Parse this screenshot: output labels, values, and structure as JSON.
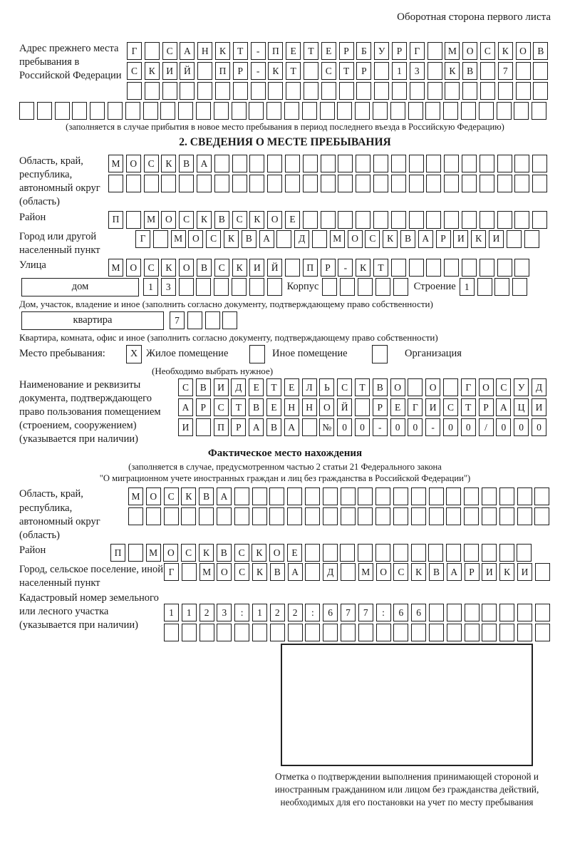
{
  "colors": {
    "ink": "#1a1a1a",
    "background": "#ffffff"
  },
  "header": {
    "note": "Оборотная сторона первого листа"
  },
  "section1": {
    "label": "Адрес прежнего места пребывания в Российской Федерации",
    "rows": [
      [
        "Г",
        "",
        "С",
        "А",
        "Н",
        "К",
        "Т",
        "-",
        "П",
        "Е",
        "Т",
        "Е",
        "Р",
        "Б",
        "У",
        "Р",
        "Г",
        "",
        "М",
        "О",
        "С",
        "К",
        "О",
        "В"
      ],
      [
        "С",
        "К",
        "И",
        "Й",
        "",
        "П",
        "Р",
        "-",
        "К",
        "Т",
        "",
        "С",
        "Т",
        "Р",
        "",
        "1",
        "3",
        "",
        "К",
        "В",
        "",
        "7",
        "",
        ""
      ],
      [
        "",
        "",
        "",
        "",
        "",
        "",
        "",
        "",
        "",
        "",
        "",
        "",
        "",
        "",
        "",
        "",
        "",
        "",
        "",
        "",
        "",
        "",
        "",
        ""
      ]
    ],
    "full_row": [
      "",
      "",
      "",
      "",
      "",
      "",
      "",
      "",
      "",
      "",
      "",
      "",
      "",
      "",
      "",
      "",
      "",
      "",
      "",
      "",
      "",
      "",
      "",
      "",
      "",
      "",
      "",
      "",
      "",
      ""
    ],
    "note": "(заполняется в случае прибытия в новое место пребывания в период последнего въезда в Российскую Федерацию)"
  },
  "section2": {
    "title": "2. СВЕДЕНИЯ О МЕСТЕ ПРЕБЫВАНИЯ",
    "oblast": {
      "label": "Область, край, республика, автономный округ (область)",
      "rows": [
        [
          "М",
          "О",
          "С",
          "К",
          "В",
          "А",
          "",
          "",
          "",
          "",
          "",
          "",
          "",
          "",
          "",
          "",
          "",
          "",
          "",
          "",
          "",
          "",
          "",
          "",
          ""
        ],
        [
          "",
          "",
          "",
          "",
          "",
          "",
          "",
          "",
          "",
          "",
          "",
          "",
          "",
          "",
          "",
          "",
          "",
          "",
          "",
          "",
          "",
          "",
          "",
          "",
          ""
        ]
      ]
    },
    "rayon": {
      "label": "Район",
      "row": [
        "П",
        "",
        "М",
        "О",
        "С",
        "К",
        "В",
        "С",
        "К",
        "О",
        "Е",
        "",
        "",
        "",
        "",
        "",
        "",
        "",
        "",
        "",
        "",
        "",
        "",
        "",
        ""
      ]
    },
    "gorod": {
      "label": "Город или другой населенный пункт",
      "row": [
        "Г",
        "",
        "М",
        "О",
        "С",
        "К",
        "В",
        "А",
        "",
        "Д",
        "",
        "М",
        "О",
        "С",
        "К",
        "В",
        "А",
        "Р",
        "И",
        "К",
        "И",
        "",
        ""
      ]
    },
    "ulitsa": {
      "label": "Улица",
      "row": [
        "М",
        "О",
        "С",
        "К",
        "О",
        "В",
        "С",
        "К",
        "И",
        "Й",
        "",
        "П",
        "Р",
        "-",
        "К",
        "Т",
        "",
        "",
        "",
        "",
        "",
        "",
        "",
        ""
      ]
    },
    "dom": {
      "box_label": "дом",
      "cells": [
        "1",
        "3",
        "",
        "",
        "",
        "",
        "",
        ""
      ],
      "korpus_label": "Корпус",
      "korpus_cells": [
        "",
        "",
        "",
        "",
        ""
      ],
      "stroenie_label": "Строение",
      "stroenie_cells": [
        "1",
        "",
        "",
        ""
      ]
    },
    "dom_note": "Дом, участок, владение и иное (заполнить согласно документу, подтверждающему право собственности)",
    "kvartira": {
      "box_label": "квартира",
      "cells": [
        "7",
        "",
        "",
        ""
      ]
    },
    "kvartira_note": "Квартира, комната, офис и иное (заполнить согласно документу, подтверждающему право собственности)",
    "stay": {
      "label": "Место пребывания:",
      "options": [
        {
          "mark": "X",
          "label": "Жилое помещение"
        },
        {
          "mark": "",
          "label": "Иное помещение"
        },
        {
          "mark": "",
          "label": "Организация"
        }
      ],
      "note": "(Необходимо выбрать нужное)"
    },
    "doc": {
      "label": "Наименование и реквизиты документа, подтверждающего право пользования помещением (строением, сооружением) (указывается при наличии)",
      "rows": [
        [
          "С",
          "В",
          "И",
          "Д",
          "Е",
          "Т",
          "Е",
          "Л",
          "Ь",
          "С",
          "Т",
          "В",
          "О",
          "",
          "О",
          "",
          "Г",
          "О",
          "С",
          "У",
          "Д"
        ],
        [
          "А",
          "Р",
          "С",
          "Т",
          "В",
          "Е",
          "Н",
          "Н",
          "О",
          "Й",
          "",
          "Р",
          "Е",
          "Г",
          "И",
          "С",
          "Т",
          "Р",
          "А",
          "Ц",
          "И"
        ],
        [
          "И",
          "",
          "П",
          "Р",
          "А",
          "В",
          "А",
          "",
          "№",
          "0",
          "0",
          "-",
          "0",
          "0",
          "-",
          "0",
          "0",
          "/",
          "0",
          "0",
          "0"
        ]
      ]
    }
  },
  "section3": {
    "title": "Фактическое место нахождения",
    "note_line1": "(заполняется в случае, предусмотренном частью 2 статьи 21 Федерального закона",
    "note_line2": "\"О миграционном учете иностранных граждан и лиц без гражданства в Российской Федерации\")",
    "oblast": {
      "label": "Область, край, республика, автономный округ (область)",
      "rows": [
        [
          "М",
          "О",
          "С",
          "К",
          "В",
          "А",
          "",
          "",
          "",
          "",
          "",
          "",
          "",
          "",
          "",
          "",
          "",
          "",
          "",
          "",
          "",
          "",
          "",
          ""
        ],
        [
          "",
          "",
          "",
          "",
          "",
          "",
          "",
          "",
          "",
          "",
          "",
          "",
          "",
          "",
          "",
          "",
          "",
          "",
          "",
          "",
          "",
          "",
          "",
          ""
        ]
      ]
    },
    "rayon": {
      "label": "Район",
      "row": [
        "П",
        "",
        "М",
        "О",
        "С",
        "К",
        "В",
        "С",
        "К",
        "О",
        "Е",
        "",
        "",
        "",
        "",
        "",
        "",
        "",
        "",
        "",
        "",
        "",
        "",
        ""
      ]
    },
    "gorod": {
      "label": "Город, сельское поселение, иной населенный пункт",
      "row": [
        "Г",
        "",
        "М",
        "О",
        "С",
        "К",
        "В",
        "А",
        "",
        "Д",
        "",
        "М",
        "О",
        "С",
        "К",
        "В",
        "А",
        "Р",
        "И",
        "К",
        "И",
        ""
      ]
    },
    "kadastr": {
      "label": "Кадастровый номер земельного или лесного участка (указывается при наличии)",
      "rows": [
        [
          "1",
          "1",
          "2",
          "3",
          ":",
          "1",
          "2",
          "2",
          ":",
          "6",
          "7",
          "7",
          ":",
          "6",
          "6",
          "",
          "",
          "",
          "",
          "",
          "",
          ""
        ],
        [
          "",
          "",
          "",
          "",
          "",
          "",
          "",
          "",
          "",
          "",
          "",
          "",
          "",
          "",
          "",
          "",
          "",
          "",
          "",
          "",
          "",
          ""
        ]
      ]
    },
    "stamp": {
      "caption": "Отметка о подтверждении выполнения принимающей стороной и иностранным гражданином или лицом без гражданства действий, необходимых для его постановки на учет по месту пребывания"
    }
  }
}
